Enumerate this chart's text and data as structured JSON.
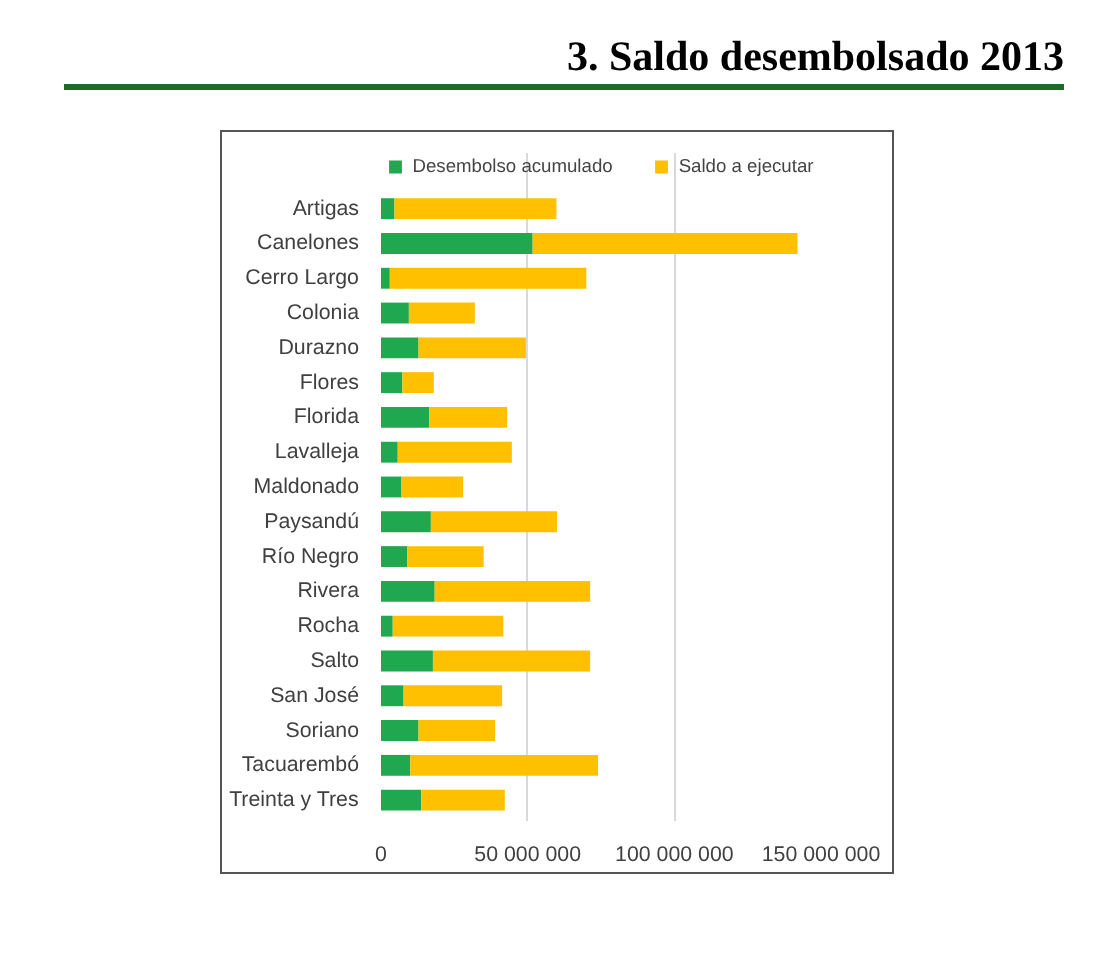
{
  "chart_data": {
    "type": "bar",
    "orientation": "horizontal",
    "stacked": true,
    "title": "3. Saldo desembolsado 2013",
    "categories": [
      "Artigas",
      "Canelones",
      "Cerro Largo",
      "Colonia",
      "Durazno",
      "Flores",
      "Florida",
      "Lavalleja",
      "Maldonado",
      "Paysandú",
      "Río Negro",
      "Rivera",
      "Rocha",
      "Salto",
      "San José",
      "Soriano",
      "Tacuarembó",
      "Treinta y Tres"
    ],
    "series": [
      {
        "name": "Desembolso acumulado",
        "color": "#1fa84f",
        "values": [
          4600000,
          51700000,
          3000000,
          9500000,
          12800000,
          7300000,
          16500000,
          5700000,
          7000000,
          17000000,
          9000000,
          18300000,
          4000000,
          17700000,
          7700000,
          12800000,
          10000000,
          13700000
        ]
      },
      {
        "name": "Saldo a ejecutar",
        "color": "#ffc000",
        "values": [
          55200000,
          90300000,
          67000000,
          22500000,
          36600000,
          10700000,
          26500000,
          38900000,
          21000000,
          43000000,
          26000000,
          53000000,
          37700000,
          53600000,
          33600000,
          26100000,
          64000000,
          28500000
        ]
      }
    ],
    "xlim": [
      0,
      150000000
    ],
    "xticks": [
      0,
      {
        "value": 50000000,
        "label": "50 000 000"
      },
      {
        "value": 100000000,
        "label": "100 000 000"
      },
      {
        "value": 150000000,
        "label": "150 000 000"
      }
    ],
    "grid": "x",
    "legend": "top"
  }
}
